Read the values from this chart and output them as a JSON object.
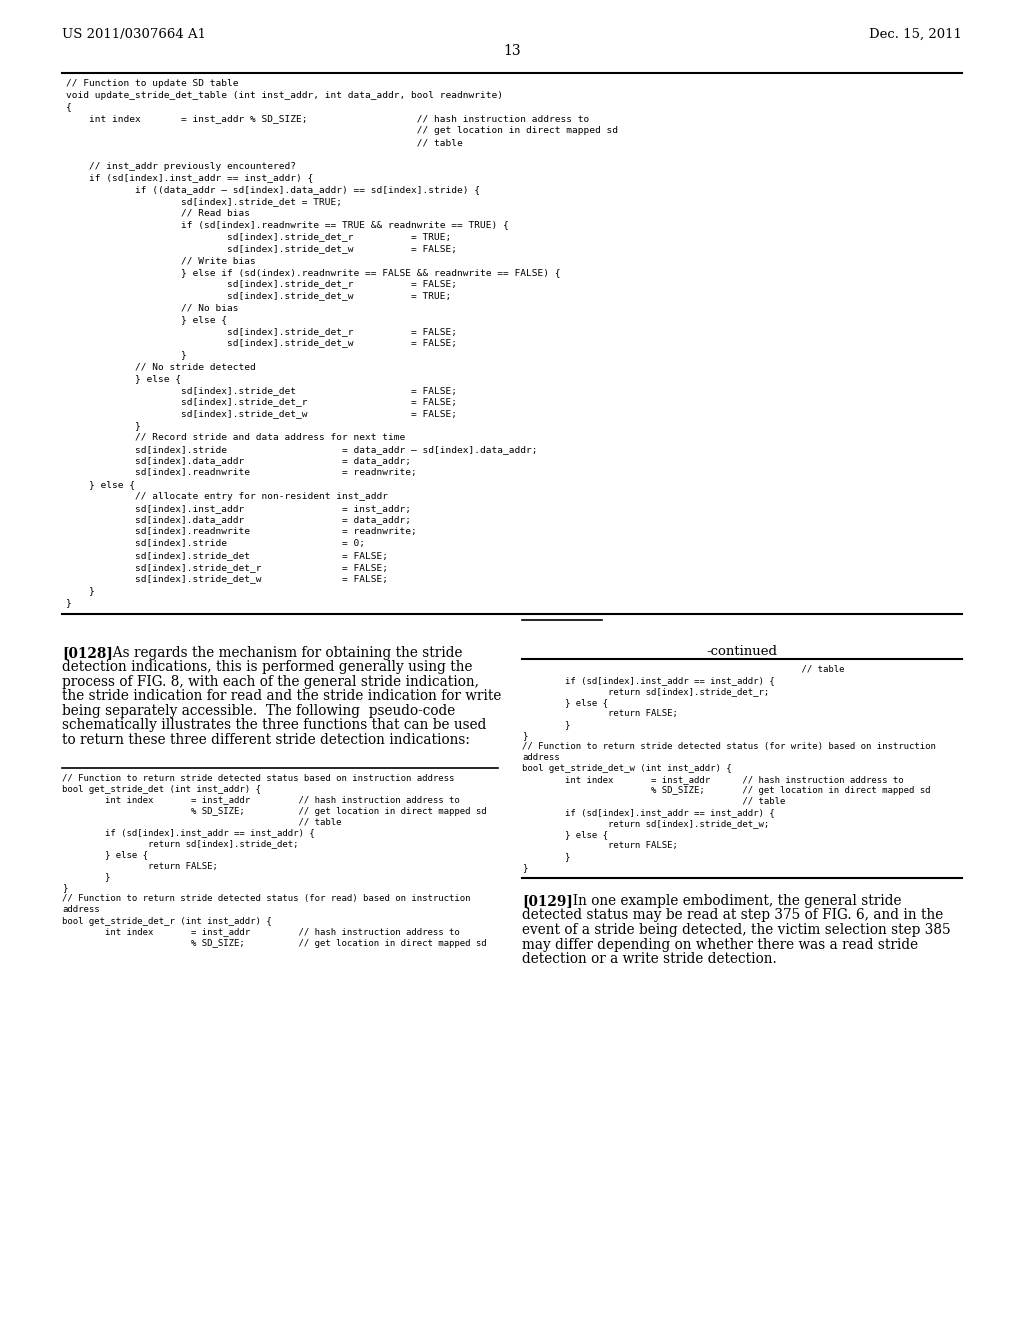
{
  "bg_color": "#ffffff",
  "text_color": "#000000",
  "header_left": "US 2011/0307664 A1",
  "header_right": "Dec. 15, 2011",
  "page_number": "13",
  "code_block_1": [
    "// Function to update SD table",
    "void update_stride_det_table (int inst_addr, int data_addr, bool readnwrite)",
    "{",
    "    int index       = inst_addr % SD_SIZE;                   // hash instruction address to",
    "                                                             // get location in direct mapped sd",
    "                                                             // table",
    "",
    "    // inst_addr previously encountered?",
    "    if (sd[index].inst_addr == inst_addr) {",
    "            if ((data_addr – sd[index].data_addr) == sd[index].stride) {",
    "                    sd[index].stride_det = TRUE;",
    "                    // Read bias",
    "                    if (sd[index].readnwrite == TRUE && readnwrite == TRUE) {",
    "                            sd[index].stride_det_r          = TRUE;",
    "                            sd[index].stride_det_w          = FALSE;",
    "                    // Write bias",
    "                    } else if (sd(index).readnwrite == FALSE && readnwrite == FALSE) {",
    "                            sd[index].stride_det_r          = FALSE;",
    "                            sd[index].stride_det_w          = TRUE;",
    "                    // No bias",
    "                    } else {",
    "                            sd[index].stride_det_r          = FALSE;",
    "                            sd[index].stride_det_w          = FALSE;",
    "                    }",
    "            // No stride detected",
    "            } else {",
    "                    sd[index].stride_det                    = FALSE;",
    "                    sd[index].stride_det_r                  = FALSE;",
    "                    sd[index].stride_det_w                  = FALSE;",
    "            }",
    "            // Record stride and data address for next time",
    "            sd[index].stride                    = data_addr – sd[index].data_addr;",
    "            sd[index].data_addr                 = data_addr;",
    "            sd[index].readnwrite                = readnwrite;",
    "    } else {",
    "            // allocate entry for non-resident inst_addr",
    "            sd[index].inst_addr                 = inst_addr;",
    "            sd[index].data_addr                 = data_addr;",
    "            sd[index].readnwrite                = readnwrite;",
    "            sd[index].stride                    = 0;",
    "            sd[index].stride_det                = FALSE;",
    "            sd[index].stride_det_r              = FALSE;",
    "            sd[index].stride_det_w              = FALSE;",
    "    }",
    "}"
  ],
  "left_col_para128": [
    "[0128]",
    "  As regards the mechanism for obtaining the stride",
    "detection indications, this is performed generally using the",
    "process of FIG. 8, with each of the general stride indication,",
    "the stride indication for read and the stride indication for write",
    "being separately accessible.  The following  pseudo-code",
    "schematically illustrates the three functions that can be used",
    "to return these three different stride detection indications:"
  ],
  "left_col_code2": [
    "// Function to return stride detected status based on instruction address",
    "bool get_stride_det (int inst_addr) {",
    "        int index       = inst_addr         // hash instruction address to",
    "                        % SD_SIZE;          // get location in direct mapped sd",
    "                                            // table",
    "        if (sd[index].inst_addr == inst_addr) {",
    "                return sd[index].stride_det;",
    "        } else {",
    "                return FALSE;",
    "        }",
    "}",
    "// Function to return stride detected status (for read) based on instruction",
    "address",
    "bool get_stride_det_r (int inst_addr) {",
    "        int index       = inst_addr         // hash instruction address to",
    "                        % SD_SIZE;          // get location in direct mapped sd"
  ],
  "right_col_continued": "-continued",
  "right_col_code2": [
    "                                                    // table",
    "        if (sd[index].inst_addr == inst_addr) {",
    "                return sd[index].stride_det_r;",
    "        } else {",
    "                return FALSE;",
    "        }",
    "}",
    "// Function to return stride detected status (for write) based on instruction",
    "address",
    "bool get_stride_det_w (int inst_addr) {",
    "        int index       = inst_addr      // hash instruction address to",
    "                        % SD_SIZE;       // get location in direct mapped sd",
    "                                         // table",
    "        if (sd[index].inst_addr == inst_addr) {",
    "                return sd[index].stride_det_w;",
    "        } else {",
    "                return FALSE;",
    "        }",
    "}"
  ],
  "right_col_para129_lines": [
    "[0129]",
    "  In one example embodiment, the general stride",
    "detected status may be read at step 375 of FIG. 6, and in the",
    "event of a stride being detected, the victim selection step 385",
    "may differ depending on whether there was a read stride",
    "detection or a write stride detection."
  ],
  "bold_words_129": [
    "375",
    "6,",
    "385"
  ]
}
